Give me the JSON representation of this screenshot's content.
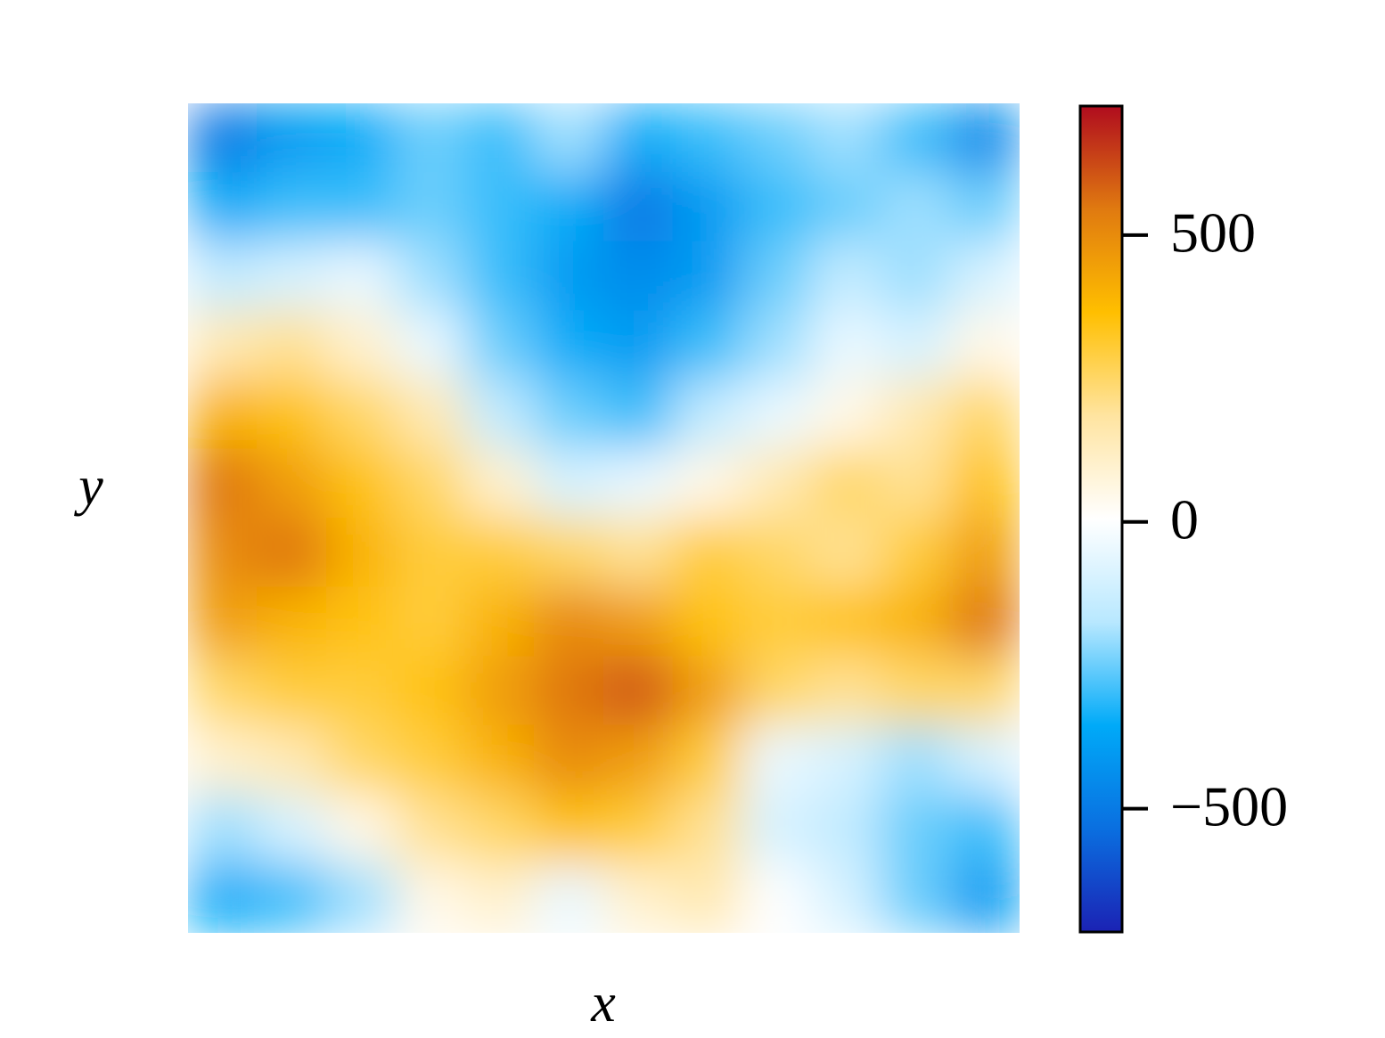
{
  "chart_data": {
    "type": "heatmap",
    "x_label": "x",
    "y_label": "y",
    "values": [
      [
        -500,
        -400,
        -350,
        -250,
        -300,
        -200,
        -350,
        -300,
        -250,
        -200,
        -300,
        -450
      ],
      [
        -350,
        -300,
        -300,
        -250,
        -300,
        -350,
        -500,
        -400,
        -300,
        -250,
        -200,
        -250
      ],
      [
        -150,
        -100,
        -50,
        -200,
        -300,
        -400,
        -450,
        -400,
        -250,
        -150,
        -200,
        -100
      ],
      [
        150,
        200,
        100,
        -50,
        -250,
        -350,
        -400,
        -300,
        -200,
        -50,
        -100,
        50
      ],
      [
        400,
        350,
        250,
        150,
        -150,
        -250,
        -300,
        -150,
        -50,
        50,
        150,
        250
      ],
      [
        550,
        450,
        350,
        250,
        100,
        -100,
        -50,
        50,
        150,
        250,
        200,
        350
      ],
      [
        500,
        550,
        400,
        300,
        300,
        250,
        200,
        300,
        250,
        200,
        300,
        450
      ],
      [
        450,
        400,
        350,
        300,
        400,
        500,
        450,
        350,
        300,
        350,
        400,
        550
      ],
      [
        250,
        300,
        300,
        350,
        450,
        550,
        600,
        450,
        250,
        200,
        250,
        250
      ],
      [
        100,
        150,
        250,
        300,
        400,
        500,
        450,
        300,
        -50,
        -100,
        -200,
        -100
      ],
      [
        -200,
        -100,
        50,
        200,
        250,
        350,
        300,
        200,
        -100,
        -150,
        -250,
        -300
      ],
      [
        -350,
        -300,
        -200,
        50,
        100,
        -50,
        100,
        150,
        0,
        -100,
        -250,
        -400
      ]
    ],
    "clim": [
      -715,
      725
    ],
    "cticks": [
      {
        "value": -500,
        "label": "−500"
      },
      0,
      500
    ],
    "colormap": [
      "#1b22b4",
      "#0a6fe0",
      "#00aaf8",
      "#b8e8ff",
      "#ffffff",
      "#ffe4a0",
      "#ffbf00",
      "#e07a10",
      "#b00c1e"
    ]
  }
}
